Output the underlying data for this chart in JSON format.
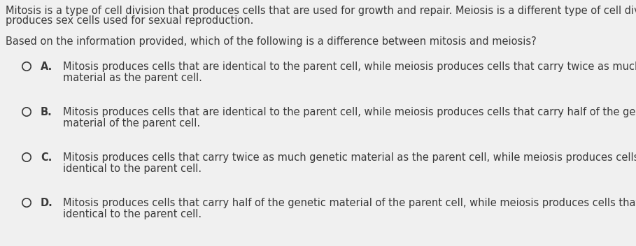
{
  "bg_color": "#f0f0f0",
  "text_color": "#3a3a3a",
  "passage_line1": "Mitosis is a type of cell division that produces cells that are used for growth and repair. Meiosis is a different type of cell division tha",
  "passage_line2": "produces sex cells used for sexual reproduction.",
  "question": "Based on the information provided, which of the following is a difference between mitosis and meiosis?",
  "options": [
    {
      "label": "A.",
      "line1": "Mitosis produces cells that are identical to the parent cell, while meiosis produces cells that carry twice as much genetic",
      "line2": "material as the parent cell."
    },
    {
      "label": "B.",
      "line1": "Mitosis produces cells that are identical to the parent cell, while meiosis produces cells that carry half of the genetic",
      "line2": "material of the parent cell."
    },
    {
      "label": "C.",
      "line1": "Mitosis produces cells that carry twice as much genetic material as the parent cell, while meiosis produces cells that",
      "line2": "identical to the parent cell."
    },
    {
      "label": "D.",
      "line1": "Mitosis produces cells that carry half of the genetic material of the parent cell, while meiosis produces cells that are",
      "line2": "identical to the parent cell."
    }
  ],
  "fontsize": 10.5,
  "fig_width": 9.09,
  "fig_height": 3.52,
  "dpi": 100
}
